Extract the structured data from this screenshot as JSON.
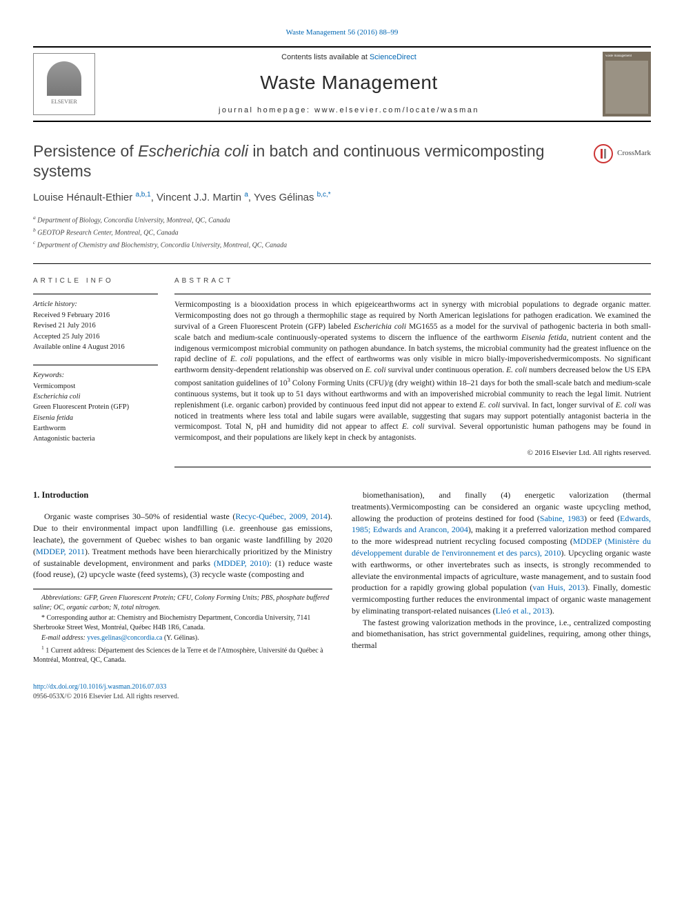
{
  "top_ref": "Waste Management 56 (2016) 88–99",
  "header": {
    "contents_text": "Contents lists available at ",
    "contents_link": "ScienceDirect",
    "journal_name": "Waste Management",
    "homepage_text": "journal homepage: www.elsevier.com/locate/wasman",
    "publisher": "ELSEVIER"
  },
  "title_parts": {
    "pre": "Persistence of ",
    "italic": "Escherichia coli",
    "post": " in batch and continuous vermicomposting systems"
  },
  "crossmark_label": "CrossMark",
  "authors_parts": {
    "a1_name": "Louise Hénault-Ethier",
    "a1_aff": "a,b,1",
    "a2_name": "Vincent J.J. Martin",
    "a2_aff": "a",
    "a3_name": "Yves Gélinas",
    "a3_aff": "b,c,",
    "corr": "*"
  },
  "affiliations": {
    "a": "Department of Biology, Concordia University, Montreal, QC, Canada",
    "b": "GEOTOP Research Center, Montreal, QC, Canada",
    "c": "Department of Chemistry and Biochemistry, Concordia University, Montreal, QC, Canada"
  },
  "info": {
    "heading": "article info",
    "history_label": "Article history:",
    "received": "Received 9 February 2016",
    "revised": "Revised 21 July 2016",
    "accepted": "Accepted 25 July 2016",
    "online": "Available online 4 August 2016",
    "keywords_label": "Keywords:",
    "keywords": [
      "Vermicompost",
      "Escherichia coli",
      "Green Fluorescent Protein (GFP)",
      "Eisenia fetida",
      "Earthworm",
      "Antagonistic bacteria"
    ]
  },
  "abstract": {
    "heading": "abstract",
    "text_parts": [
      {
        "t": "Vermicomposting is a biooxidation process in which epigeicearthworms act in synergy with microbial populations to degrade organic matter. Vermicomposting does not go through a thermophilic stage as required by North American legislations for pathogen eradication. We examined the survival of a Green Fluorescent Protein (GFP) labeled "
      },
      {
        "t": "Escherichia coli",
        "i": true
      },
      {
        "t": " MG1655 as a model for the survival of pathogenic bacteria in both small-scale batch and medium-scale continuously-operated systems to discern the influence of the earthworm "
      },
      {
        "t": "Eisenia fetida",
        "i": true
      },
      {
        "t": ", nutrient content and the indigenous vermicompost microbial community on pathogen abundance. In batch systems, the microbial community had the greatest influence on the rapid decline of "
      },
      {
        "t": "E. coli",
        "i": true
      },
      {
        "t": " populations, and the effect of earthworms was only visible in micro bially-impoverishedvermicomposts. No significant earthworm density-dependent relationship was observed on "
      },
      {
        "t": "E. coli",
        "i": true
      },
      {
        "t": " survival under continuous operation. "
      },
      {
        "t": "E. coli",
        "i": true
      },
      {
        "t": " numbers decreased below the US EPA compost sanitation guidelines of 10"
      },
      {
        "t": "3",
        "sup": true
      },
      {
        "t": " Colony Forming Units (CFU)/g (dry weight) within 18–21 days for both the small-scale batch and medium-scale continuous systems, but it took up to 51 days without earthworms and with an impoverished microbial community to reach the legal limit. Nutrient replenishment (i.e. organic carbon) provided by continuous feed input did not appear to extend "
      },
      {
        "t": "E. coli",
        "i": true
      },
      {
        "t": " survival. In fact, longer survival of "
      },
      {
        "t": "E. coli",
        "i": true
      },
      {
        "t": " was noticed in treatments where less total and labile sugars were available, suggesting that sugars may support potentially antagonist bacteria in the vermicompost. Total N, pH and humidity did not appear to affect "
      },
      {
        "t": "E. coli",
        "i": true
      },
      {
        "t": " survival. Several opportunistic human pathogens may be found in vermicompost, and their populations are likely kept in check by antagonists."
      }
    ],
    "copyright": "© 2016 Elsevier Ltd. All rights reserved."
  },
  "body": {
    "section_head": "1. Introduction",
    "col1": [
      {
        "t": "Organic waste comprises 30–50% of residential waste ("
      },
      {
        "t": "Recyc-Québec, 2009, 2014",
        "a": true
      },
      {
        "t": "). Due to their environmental impact upon landfilling (i.e. greenhouse gas emissions, leachate), the government of Quebec wishes to ban organic waste landfilling by 2020 ("
      },
      {
        "t": "MDDEP, 2011",
        "a": true
      },
      {
        "t": "). Treatment methods have been hierarchically prioritized by the Ministry of sustainable development, environment and parks "
      },
      {
        "t": "(MDDEP, 2010)",
        "a": true
      },
      {
        "t": ": (1) reduce waste (food reuse), (2) upcycle waste (feed systems), (3) recycle waste (composting and"
      }
    ],
    "col2_p1": [
      {
        "t": "biomethanisation), and finally (4) energetic valorization (thermal treatments).Vermicomposting can be considered an organic waste upcycling method, allowing the production of proteins destined for food ("
      },
      {
        "t": "Sabine, 1983",
        "a": true
      },
      {
        "t": ") or feed ("
      },
      {
        "t": "Edwards, 1985; Edwards and Arancon, 2004",
        "a": true
      },
      {
        "t": "), making it a preferred valorization method compared to the more widespread nutrient recycling focused composting ("
      },
      {
        "t": "MDDEP (Ministère du développement durable de l'environnement et des parcs), 2010",
        "a": true
      },
      {
        "t": "). Upcycling organic waste with earthworms, or other invertebrates such as insects, is strongly recommended to alleviate the environmental impacts of agriculture, waste management, and to sustain food production for a rapidly growing global population ("
      },
      {
        "t": "van Huis, 2013",
        "a": true
      },
      {
        "t": "). Finally, domestic vermicomposting further reduces the environmental impact of organic waste management by eliminating transport-related nuisances ("
      },
      {
        "t": "Lleó et al., 2013",
        "a": true
      },
      {
        "t": ")."
      }
    ],
    "col2_p2": [
      {
        "t": "The fastest growing valorization methods in the province, i.e., centralized composting and biomethanisation, has strict governmental guidelines, requiring, among other things, thermal"
      }
    ]
  },
  "footnotes": {
    "abbrev": "Abbreviations: GFP, Green Fluorescent Protein; CFU, Colony Forming Units; PBS, phosphate buffered saline; OC, organic carbon; N, total nitrogen.",
    "corr": "* Corresponding author at: Chemistry and Biochemistry Department, Concordia University, 7141 Sherbrooke Street West, Montréal, Québec H4B 1R6, Canada.",
    "email_label": "E-mail address: ",
    "email": "yves.gelinas@concordia.ca",
    "email_suffix": " (Y. Gélinas).",
    "addr1": "1 Current address: Département des Sciences de la Terre et de l'Atmosphère, Université du Québec à Montréal, Montreal, QC, Canada."
  },
  "footer": {
    "doi": "http://dx.doi.org/10.1016/j.wasman.2016.07.033",
    "issn": "0956-053X/© 2016 Elsevier Ltd. All rights reserved."
  },
  "colors": {
    "link": "#0066b3",
    "text": "#1a1a1a",
    "heading_gray": "#444444"
  }
}
